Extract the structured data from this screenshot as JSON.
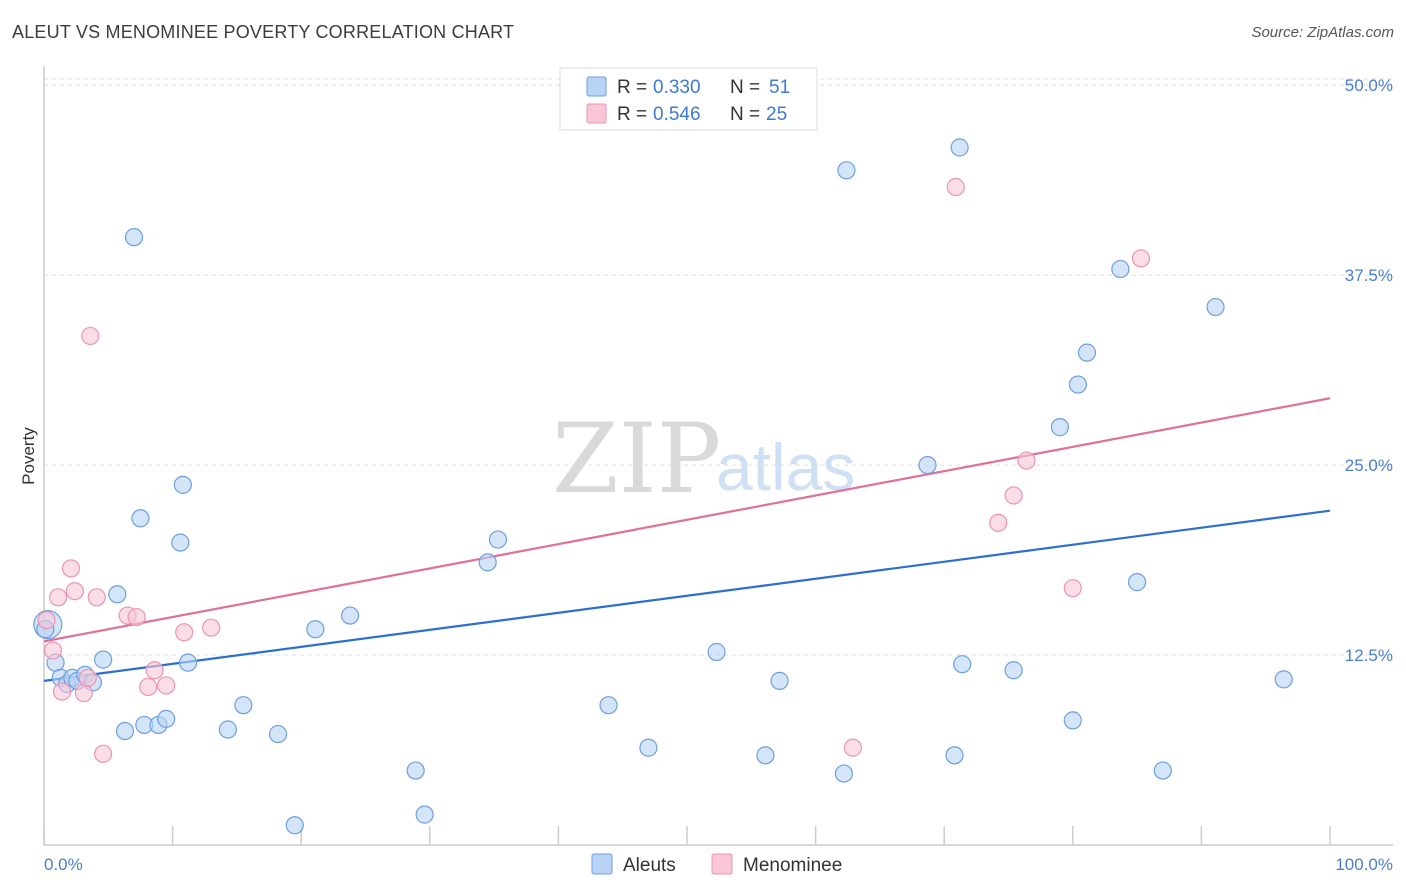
{
  "title": "ALEUT VS MENOMINEE POVERTY CORRELATION CHART",
  "source": "Source: ZipAtlas.com",
  "watermark": {
    "zip": "ZIP",
    "atlas": "atlas"
  },
  "colors": {
    "aleut_fill": "#b8d3f5",
    "aleut_stroke": "#6d9fe0",
    "aleut_line": "#2d6fd1",
    "menominee_fill": "#f8c6d6",
    "menominee_stroke": "#ec94b1",
    "menominee_line": "#e0709a",
    "tick_label": "#4a7fcf",
    "grid": "#dddddd"
  },
  "legend": {
    "rows": [
      {
        "r_label": "R = ",
        "r_value": "0.330",
        "n_label": "N = ",
        "n_value": "51"
      },
      {
        "r_label": "R = ",
        "r_value": "0.546",
        "n_label": "N = ",
        "n_value": "25"
      }
    ]
  },
  "chart_data": {
    "type": "scatter",
    "title": "ALEUT VS MENOMINEE POVERTY CORRELATION CHART",
    "xlabel": "",
    "ylabel": "Poverty",
    "xlim": [
      0,
      100
    ],
    "ylim": [
      0,
      51
    ],
    "x_tick_labels": [
      "0.0%",
      "100.0%"
    ],
    "y_ticks": [
      12.5,
      25.0,
      37.5,
      50.0
    ],
    "y_tick_labels": [
      "12.5%",
      "25.0%",
      "37.5%",
      "50.0%"
    ],
    "grid": true,
    "legend_position": "top-center",
    "series": [
      {
        "name": "Aleuts",
        "R": 0.33,
        "N": 51,
        "trend": {
          "x": [
            0,
            100
          ],
          "y": [
            10.8,
            22.0
          ]
        },
        "points": [
          [
            0.3,
            14.5
          ],
          [
            0.9,
            12.0
          ],
          [
            1.3,
            11.0
          ],
          [
            1.8,
            10.6
          ],
          [
            2.2,
            11.0
          ],
          [
            2.6,
            10.8
          ],
          [
            3.2,
            11.2
          ],
          [
            3.8,
            10.7
          ],
          [
            4.6,
            12.2
          ],
          [
            5.7,
            16.5
          ],
          [
            6.3,
            7.5
          ],
          [
            7.0,
            40.0
          ],
          [
            7.5,
            21.5
          ],
          [
            7.8,
            7.9
          ],
          [
            8.9,
            7.9
          ],
          [
            9.5,
            8.3
          ],
          [
            10.6,
            19.9
          ],
          [
            10.8,
            23.7
          ],
          [
            11.2,
            12.0
          ],
          [
            14.3,
            7.6
          ],
          [
            15.5,
            9.2
          ],
          [
            18.2,
            7.3
          ],
          [
            19.5,
            1.3
          ],
          [
            21.1,
            14.2
          ],
          [
            23.8,
            15.1
          ],
          [
            28.9,
            4.9
          ],
          [
            29.6,
            2.0
          ],
          [
            34.5,
            18.6
          ],
          [
            35.3,
            20.1
          ],
          [
            43.9,
            9.2
          ],
          [
            47.0,
            6.4
          ],
          [
            52.3,
            12.7
          ],
          [
            56.1,
            5.9
          ],
          [
            57.2,
            10.8
          ],
          [
            62.2,
            4.7
          ],
          [
            62.4,
            44.4
          ],
          [
            68.7,
            25.0
          ],
          [
            70.8,
            5.9
          ],
          [
            71.2,
            45.9
          ],
          [
            71.4,
            11.9
          ],
          [
            75.4,
            11.5
          ],
          [
            79.0,
            27.5
          ],
          [
            80.0,
            8.2
          ],
          [
            80.4,
            30.3
          ],
          [
            81.1,
            32.4
          ],
          [
            83.7,
            37.9
          ],
          [
            85.0,
            17.3
          ],
          [
            87.0,
            4.9
          ],
          [
            91.1,
            35.4
          ],
          [
            96.4,
            10.9
          ],
          [
            0.1,
            14.2
          ]
        ]
      },
      {
        "name": "Menominee",
        "R": 0.546,
        "N": 25,
        "trend": {
          "x": [
            0,
            100
          ],
          "y": [
            13.4,
            29.4
          ]
        },
        "points": [
          [
            0.2,
            14.8
          ],
          [
            0.7,
            12.8
          ],
          [
            1.1,
            16.3
          ],
          [
            1.4,
            10.1
          ],
          [
            2.1,
            18.2
          ],
          [
            2.4,
            16.7
          ],
          [
            3.1,
            10.0
          ],
          [
            3.4,
            11.0
          ],
          [
            3.6,
            33.5
          ],
          [
            4.1,
            16.3
          ],
          [
            4.6,
            6.0
          ],
          [
            6.5,
            15.1
          ],
          [
            7.2,
            15.0
          ],
          [
            8.1,
            10.4
          ],
          [
            8.6,
            11.5
          ],
          [
            9.5,
            10.5
          ],
          [
            10.9,
            14.0
          ],
          [
            13.0,
            14.3
          ],
          [
            62.9,
            6.4
          ],
          [
            70.9,
            43.3
          ],
          [
            74.2,
            21.2
          ],
          [
            75.4,
            23.0
          ],
          [
            76.4,
            25.3
          ],
          [
            80.0,
            16.9
          ],
          [
            85.3,
            38.6
          ]
        ]
      }
    ]
  }
}
